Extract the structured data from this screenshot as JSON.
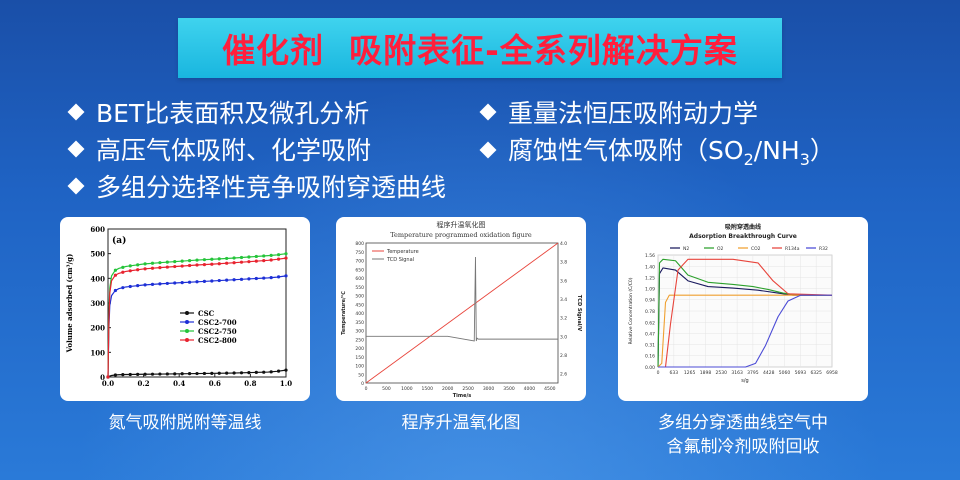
{
  "title": "催化剂  吸附表征-全系列解决方案",
  "bullets": {
    "b1": "BET比表面积及微孔分析",
    "b2": "高压气体吸附、化学吸附",
    "b3": "多组分选择性竞争吸附穿透曲线",
    "b4": "重量法恒压吸附动力学",
    "b5_pre": "腐蚀性气体吸附（SO",
    "b5_sub1": "2",
    "b5_mid": "/NH",
    "b5_sub2": "3",
    "b5_post": "）"
  },
  "colors": {
    "title_bg": "#22c0e6",
    "title_text": "#ff1f3c",
    "background": "#1f5fc0"
  },
  "captions": {
    "c1": "氮气吸附脱附等温线",
    "c2": "程序升温氧化图",
    "c3_line1": "多组分穿透曲线空气中",
    "c3_line2": "含氟制冷剂吸附回收"
  },
  "chart_data": [
    {
      "type": "line",
      "panel_label": "(a)",
      "xlabel": "",
      "ylabel": "Volume adsorbed (cm³/g)",
      "xlim": [
        0.0,
        1.0
      ],
      "ylim": [
        0,
        600
      ],
      "x_ticks": [
        "0.0",
        "0.2",
        "0.4",
        "0.6",
        "0.8",
        "1.0"
      ],
      "y_ticks": [
        "0",
        "100",
        "200",
        "300",
        "400",
        "500",
        "600"
      ],
      "x": [
        0.0,
        0.005,
        0.01,
        0.02,
        0.04,
        0.06,
        0.1,
        0.2,
        0.3,
        0.4,
        0.5,
        0.6,
        0.7,
        0.8,
        0.9,
        0.95,
        1.0
      ],
      "series": [
        {
          "name": "CSC",
          "color": "#111111",
          "values": [
            0,
            2,
            4,
            6,
            8,
            9,
            10,
            11,
            12,
            13,
            14,
            15,
            16,
            18,
            20,
            23,
            28
          ]
        },
        {
          "name": "CSC2-700",
          "color": "#1d2fd6",
          "values": [
            0,
            200,
            290,
            330,
            350,
            358,
            365,
            373,
            378,
            382,
            386,
            390,
            394,
            398,
            402,
            405,
            410
          ]
        },
        {
          "name": "CSC2-750",
          "color": "#25c43a",
          "values": [
            0,
            250,
            360,
            410,
            432,
            440,
            448,
            458,
            464,
            469,
            474,
            478,
            482,
            487,
            492,
            495,
            500
          ]
        },
        {
          "name": "CSC2-800",
          "color": "#e8232f",
          "values": [
            0,
            230,
            340,
            390,
            412,
            420,
            428,
            438,
            444,
            449,
            454,
            458,
            463,
            468,
            473,
            477,
            482
          ]
        }
      ]
    },
    {
      "type": "line",
      "title_cn": "程序升温氧化图",
      "title": "Temperature programmed oxidation figure",
      "xlabel": "Time/s",
      "ylabel": "Temperature/℃",
      "y2label": "TCD Signal/V",
      "xlim": [
        0,
        4700
      ],
      "ylim": [
        0,
        800
      ],
      "y2lim": [
        2.5,
        4.0
      ],
      "x_ticks": [
        "0",
        "500",
        "1000",
        "1500",
        "2000",
        "2500",
        "3000",
        "3500",
        "4000",
        "4500"
      ],
      "y_ticks": [
        "0",
        "50",
        "100",
        "150",
        "200",
        "250",
        "300",
        "350",
        "400",
        "450",
        "500",
        "550",
        "600",
        "650",
        "700",
        "750",
        "800"
      ],
      "y2_ticks": [
        "2.6",
        "2.8",
        "3.0",
        "3.2",
        "3.4",
        "3.6",
        "3.8",
        "4.0"
      ],
      "series": [
        {
          "name": "Temperature",
          "color": "#e8453c",
          "x": [
            0,
            4700
          ],
          "values": [
            0,
            800
          ]
        },
        {
          "name": "TCD Signal",
          "color": "#777777",
          "axis": "y2",
          "x": [
            0,
            2000,
            2650,
            2680,
            2700,
            2720,
            2750,
            3000,
            4700
          ],
          "values": [
            3.0,
            3.0,
            2.95,
            3.85,
            2.95,
            2.98,
            2.97,
            2.97,
            2.97
          ]
        }
      ]
    },
    {
      "type": "line",
      "title_cn": "吸附穿透曲线",
      "title": "Adsorption Breakthrough Curve",
      "xlabel": "s/g",
      "ylabel": "Relative Concentration (C/C0)",
      "xlim": [
        0,
        6958
      ],
      "ylim": [
        0,
        1.56
      ],
      "x_ticks": [
        "0",
        "633",
        "1265",
        "1898",
        "2530",
        "3163",
        "3795",
        "4428",
        "5060",
        "5693",
        "6325",
        "6958"
      ],
      "y_ticks": [
        "0.00",
        "0.16",
        "0.31",
        "0.47",
        "0.62",
        "0.78",
        "0.94",
        "1.09",
        "1.25",
        "1.40",
        "1.56"
      ],
      "series": [
        {
          "name": "N2",
          "color": "#1a1a5e",
          "x": [
            0,
            60,
            200,
            700,
            1200,
            2000,
            3000,
            4000,
            4800,
            5400,
            6000,
            6958
          ],
          "values": [
            0,
            1.3,
            1.38,
            1.35,
            1.2,
            1.12,
            1.1,
            1.07,
            1.03,
            1.0,
            1.0,
            1.0
          ]
        },
        {
          "name": "O2",
          "color": "#2ca02c",
          "x": [
            0,
            60,
            200,
            700,
            1200,
            2000,
            3000,
            3800,
            4400,
            5000,
            5600,
            6958
          ],
          "values": [
            0,
            1.45,
            1.5,
            1.48,
            1.28,
            1.18,
            1.15,
            1.12,
            1.08,
            1.03,
            1.0,
            1.0
          ]
        },
        {
          "name": "CO2",
          "color": "#f0a030",
          "x": [
            0,
            150,
            300,
            450,
            800,
            6958
          ],
          "values": [
            0,
            0.05,
            0.9,
            1.0,
            1.0,
            1.0
          ]
        },
        {
          "name": "R134a",
          "color": "#e8453c",
          "x": [
            0,
            300,
            500,
            800,
            1200,
            1600,
            2200,
            3000,
            4000,
            4600,
            5200,
            6958
          ],
          "values": [
            0,
            0.0,
            0.6,
            1.35,
            1.5,
            1.5,
            1.5,
            1.5,
            1.45,
            1.2,
            1.02,
            1.0
          ]
        },
        {
          "name": "R32",
          "color": "#4b4bd6",
          "x": [
            0,
            3500,
            3900,
            4300,
            4800,
            5200,
            5700,
            6958
          ],
          "values": [
            0,
            0,
            0.05,
            0.3,
            0.7,
            0.92,
            1.0,
            1.0
          ]
        }
      ]
    }
  ]
}
